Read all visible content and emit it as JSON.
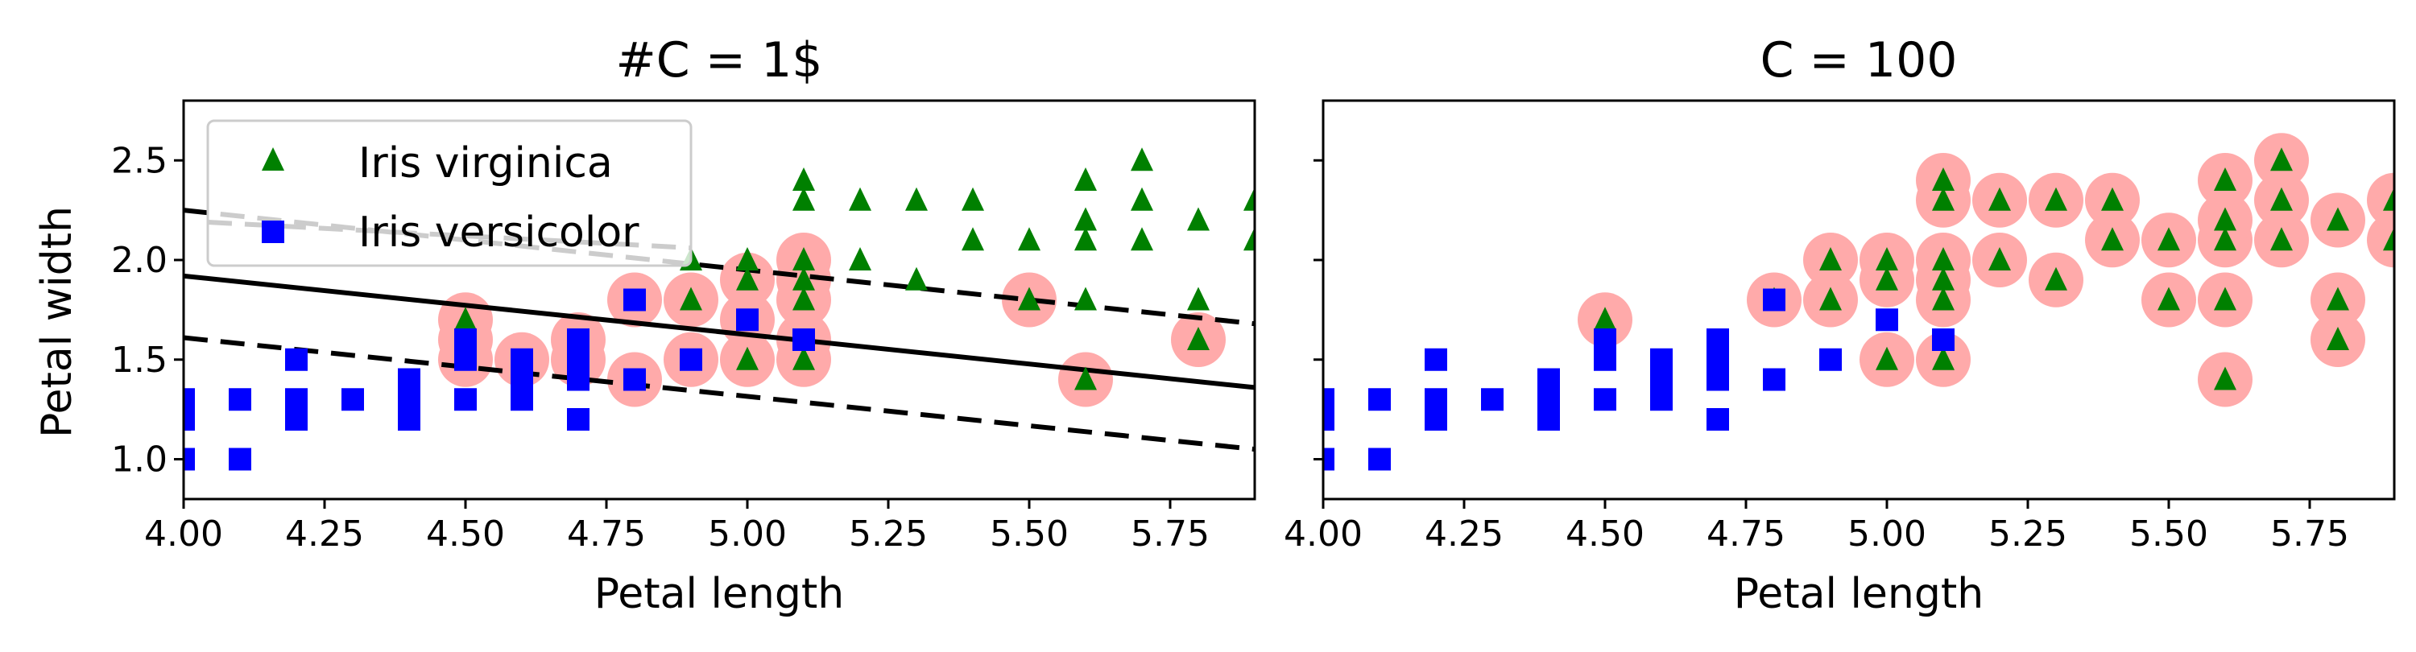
{
  "colors": {
    "virginica": "#008000",
    "versicolor": "#0000ff",
    "support_vector": "#ffaaaa",
    "boundary": "#000000",
    "legend_dash": "#cccccc"
  },
  "chart_data": [
    {
      "type": "scatter",
      "title": "#C = 1$",
      "xlabel": "Petal length",
      "ylabel": "Petal width",
      "xlim": [
        4.0,
        5.9
      ],
      "ylim": [
        0.8,
        2.8
      ],
      "xticks": [
        "4.00",
        "4.25",
        "4.50",
        "4.75",
        "5.00",
        "5.25",
        "5.50",
        "5.75"
      ],
      "yticks": [
        "1.0",
        "1.5",
        "2.0",
        "2.5"
      ],
      "legend": {
        "placement": "top-left",
        "entries": [
          "Iris virginica",
          "Iris versicolor"
        ]
      },
      "boundary": {
        "x": [
          4.0,
          5.9
        ],
        "y": [
          1.92,
          1.36
        ]
      },
      "margin_upper": {
        "x": [
          4.0,
          5.9
        ],
        "y": [
          2.25,
          1.68
        ]
      },
      "margin_lower": {
        "x": [
          4.0,
          5.9
        ],
        "y": [
          1.61,
          1.05
        ]
      },
      "series": [
        {
          "name": "Iris virginica",
          "marker": "triangle",
          "points": [
            [
              4.5,
              1.7
            ],
            [
              4.9,
              1.8
            ],
            [
              4.9,
              2.0
            ],
            [
              5.0,
              1.5
            ],
            [
              5.0,
              1.9
            ],
            [
              5.0,
              2.0
            ],
            [
              5.1,
              1.5
            ],
            [
              5.1,
              1.8
            ],
            [
              5.1,
              1.9
            ],
            [
              5.1,
              2.0
            ],
            [
              5.1,
              2.3
            ],
            [
              5.1,
              2.4
            ],
            [
              5.2,
              2.0
            ],
            [
              5.2,
              2.3
            ],
            [
              5.3,
              1.9
            ],
            [
              5.3,
              2.3
            ],
            [
              5.4,
              2.1
            ],
            [
              5.4,
              2.3
            ],
            [
              5.5,
              1.8
            ],
            [
              5.5,
              2.1
            ],
            [
              5.6,
              1.4
            ],
            [
              5.6,
              1.8
            ],
            [
              5.6,
              2.1
            ],
            [
              5.6,
              2.2
            ],
            [
              5.6,
              2.4
            ],
            [
              5.7,
              2.1
            ],
            [
              5.7,
              2.3
            ],
            [
              5.7,
              2.5
            ],
            [
              5.8,
              1.6
            ],
            [
              5.8,
              1.8
            ],
            [
              5.8,
              2.2
            ],
            [
              5.9,
              2.1
            ],
            [
              5.9,
              2.3
            ]
          ]
        },
        {
          "name": "Iris versicolor",
          "marker": "square",
          "points": [
            [
              4.0,
              1.0
            ],
            [
              4.0,
              1.2
            ],
            [
              4.0,
              1.3
            ],
            [
              4.1,
              1.0
            ],
            [
              4.1,
              1.3
            ],
            [
              4.2,
              1.2
            ],
            [
              4.2,
              1.3
            ],
            [
              4.2,
              1.5
            ],
            [
              4.3,
              1.3
            ],
            [
              4.4,
              1.2
            ],
            [
              4.4,
              1.3
            ],
            [
              4.4,
              1.4
            ],
            [
              4.5,
              1.3
            ],
            [
              4.5,
              1.5
            ],
            [
              4.5,
              1.6
            ],
            [
              4.6,
              1.3
            ],
            [
              4.6,
              1.4
            ],
            [
              4.6,
              1.5
            ],
            [
              4.7,
              1.2
            ],
            [
              4.7,
              1.4
            ],
            [
              4.7,
              1.5
            ],
            [
              4.7,
              1.6
            ],
            [
              4.8,
              1.4
            ],
            [
              4.8,
              1.8
            ],
            [
              4.9,
              1.5
            ],
            [
              5.0,
              1.7
            ],
            [
              5.1,
              1.6
            ]
          ]
        }
      ],
      "support_vectors": [
        [
          4.5,
          1.5
        ],
        [
          4.5,
          1.6
        ],
        [
          4.5,
          1.7
        ],
        [
          4.6,
          1.5
        ],
        [
          4.7,
          1.5
        ],
        [
          4.7,
          1.6
        ],
        [
          4.8,
          1.4
        ],
        [
          4.8,
          1.8
        ],
        [
          4.9,
          1.5
        ],
        [
          4.9,
          1.8
        ],
        [
          5.0,
          1.5
        ],
        [
          5.0,
          1.7
        ],
        [
          5.0,
          1.9
        ],
        [
          5.1,
          1.5
        ],
        [
          5.1,
          1.6
        ],
        [
          5.1,
          1.8
        ],
        [
          5.1,
          1.9
        ],
        [
          5.1,
          2.0
        ],
        [
          5.5,
          1.8
        ],
        [
          5.6,
          1.4
        ],
        [
          5.8,
          1.6
        ]
      ]
    },
    {
      "type": "scatter",
      "title": "C = 100",
      "xlabel": "Petal length",
      "ylabel": "",
      "xlim": [
        4.0,
        5.9
      ],
      "ylim": [
        0.8,
        2.8
      ],
      "xticks": [
        "4.00",
        "4.25",
        "4.50",
        "4.75",
        "5.00",
        "5.25",
        "5.50",
        "5.75"
      ],
      "yticks": [],
      "series": [
        {
          "name": "Iris virginica",
          "marker": "triangle",
          "points": [
            [
              4.5,
              1.7
            ],
            [
              4.8,
              1.8
            ],
            [
              4.9,
              1.8
            ],
            [
              4.9,
              2.0
            ],
            [
              5.0,
              1.5
            ],
            [
              5.0,
              1.9
            ],
            [
              5.0,
              2.0
            ],
            [
              5.1,
              1.5
            ],
            [
              5.1,
              1.8
            ],
            [
              5.1,
              1.9
            ],
            [
              5.1,
              2.0
            ],
            [
              5.1,
              2.3
            ],
            [
              5.1,
              2.4
            ],
            [
              5.2,
              2.0
            ],
            [
              5.2,
              2.3
            ],
            [
              5.3,
              1.9
            ],
            [
              5.3,
              2.3
            ],
            [
              5.4,
              2.1
            ],
            [
              5.4,
              2.3
            ],
            [
              5.5,
              1.8
            ],
            [
              5.5,
              2.1
            ],
            [
              5.6,
              1.4
            ],
            [
              5.6,
              1.8
            ],
            [
              5.6,
              2.1
            ],
            [
              5.6,
              2.2
            ],
            [
              5.6,
              2.4
            ],
            [
              5.7,
              2.1
            ],
            [
              5.7,
              2.3
            ],
            [
              5.7,
              2.5
            ],
            [
              5.8,
              1.6
            ],
            [
              5.8,
              1.8
            ],
            [
              5.8,
              2.2
            ],
            [
              5.9,
              2.1
            ],
            [
              5.9,
              2.3
            ]
          ]
        },
        {
          "name": "Iris versicolor",
          "marker": "square",
          "points": [
            [
              4.0,
              1.0
            ],
            [
              4.0,
              1.2
            ],
            [
              4.0,
              1.3
            ],
            [
              4.1,
              1.0
            ],
            [
              4.1,
              1.3
            ],
            [
              4.2,
              1.2
            ],
            [
              4.2,
              1.3
            ],
            [
              4.2,
              1.5
            ],
            [
              4.3,
              1.3
            ],
            [
              4.4,
              1.2
            ],
            [
              4.4,
              1.3
            ],
            [
              4.4,
              1.4
            ],
            [
              4.5,
              1.3
            ],
            [
              4.5,
              1.5
            ],
            [
              4.5,
              1.6
            ],
            [
              4.6,
              1.3
            ],
            [
              4.6,
              1.4
            ],
            [
              4.6,
              1.5
            ],
            [
              4.7,
              1.2
            ],
            [
              4.7,
              1.4
            ],
            [
              4.7,
              1.5
            ],
            [
              4.7,
              1.6
            ],
            [
              4.8,
              1.4
            ],
            [
              4.8,
              1.8
            ],
            [
              4.9,
              1.5
            ],
            [
              5.0,
              1.7
            ],
            [
              5.1,
              1.6
            ]
          ]
        }
      ],
      "support_vectors": [
        [
          4.5,
          1.7
        ],
        [
          4.8,
          1.8
        ],
        [
          4.9,
          1.8
        ],
        [
          4.9,
          2.0
        ],
        [
          5.0,
          1.5
        ],
        [
          5.0,
          1.9
        ],
        [
          5.0,
          2.0
        ],
        [
          5.1,
          1.5
        ],
        [
          5.1,
          1.8
        ],
        [
          5.1,
          1.9
        ],
        [
          5.1,
          2.0
        ],
        [
          5.1,
          2.3
        ],
        [
          5.1,
          2.4
        ],
        [
          5.2,
          2.0
        ],
        [
          5.2,
          2.3
        ],
        [
          5.3,
          1.9
        ],
        [
          5.3,
          2.3
        ],
        [
          5.4,
          2.1
        ],
        [
          5.4,
          2.3
        ],
        [
          5.5,
          1.8
        ],
        [
          5.5,
          2.1
        ],
        [
          5.6,
          1.4
        ],
        [
          5.6,
          1.8
        ],
        [
          5.6,
          2.1
        ],
        [
          5.6,
          2.2
        ],
        [
          5.6,
          2.4
        ],
        [
          5.7,
          2.1
        ],
        [
          5.7,
          2.3
        ],
        [
          5.7,
          2.5
        ],
        [
          5.8,
          1.6
        ],
        [
          5.8,
          1.8
        ],
        [
          5.8,
          2.2
        ],
        [
          5.9,
          2.1
        ],
        [
          5.9,
          2.3
        ]
      ]
    }
  ]
}
